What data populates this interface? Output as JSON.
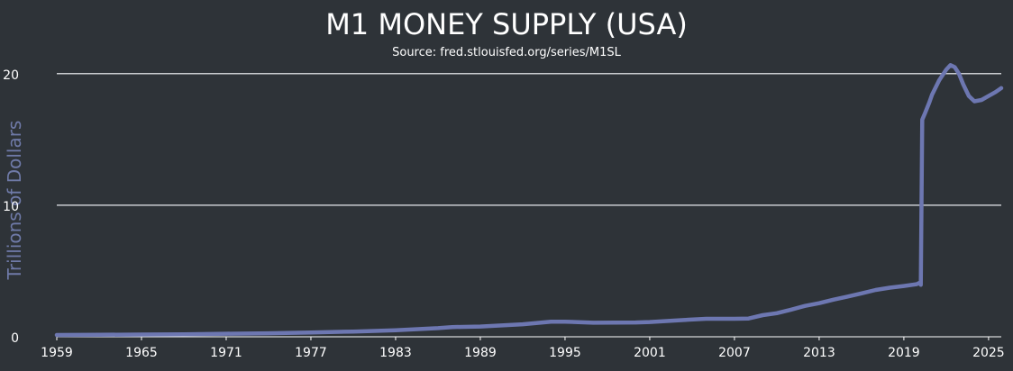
{
  "colors": {
    "background": "#2e3338",
    "text": "#ffffff",
    "line": "#6d77b1",
    "ylabel": "#6f7aa8",
    "grid": "#c9ccd0"
  },
  "chart_data": {
    "type": "line",
    "title": "M1 MONEY SUPPLY (USA)",
    "subtitle": "Source: fred.stlouisfed.org/series/M1SL",
    "xlabel": "",
    "ylabel": "Trillions of Dollars",
    "xlim": [
      1959,
      2025.9
    ],
    "ylim": [
      0,
      20.6
    ],
    "x_ticks": [
      1959,
      1965,
      1971,
      1977,
      1983,
      1989,
      1995,
      2001,
      2007,
      2013,
      2019,
      2025
    ],
    "y_ticks": [
      0,
      10,
      20
    ],
    "grid": "horizontal",
    "legend": "none",
    "series": [
      {
        "x": [
          1959,
          1962,
          1965,
          1968,
          1971,
          1974,
          1977,
          1980,
          1983,
          1986,
          1987,
          1989,
          1992,
          1994,
          1995,
          1997,
          2000,
          2001,
          2003,
          2005,
          2007,
          2008,
          2009,
          2010,
          2011,
          2012,
          2013,
          2014,
          2015,
          2016,
          2017,
          2018,
          2019,
          2019.9,
          2020.1,
          2020.2,
          2020.3,
          2020.5,
          2020.8,
          2021.0,
          2021.5,
          2022.0,
          2022.3,
          2022.6,
          2022.9,
          2023.2,
          2023.6,
          2024.0,
          2024.5,
          2025.0,
          2025.5,
          2025.9
        ],
        "y": [
          0.14,
          0.15,
          0.17,
          0.19,
          0.23,
          0.27,
          0.33,
          0.4,
          0.5,
          0.66,
          0.74,
          0.78,
          0.95,
          1.14,
          1.15,
          1.07,
          1.09,
          1.12,
          1.25,
          1.37,
          1.37,
          1.39,
          1.64,
          1.79,
          2.06,
          2.35,
          2.55,
          2.82,
          3.05,
          3.3,
          3.56,
          3.73,
          3.86,
          4.0,
          4.1,
          3.95,
          16.5,
          17.0,
          17.8,
          18.4,
          19.5,
          20.3,
          20.65,
          20.5,
          20.0,
          19.2,
          18.3,
          17.9,
          18.0,
          18.3,
          18.6,
          18.9
        ]
      }
    ]
  }
}
